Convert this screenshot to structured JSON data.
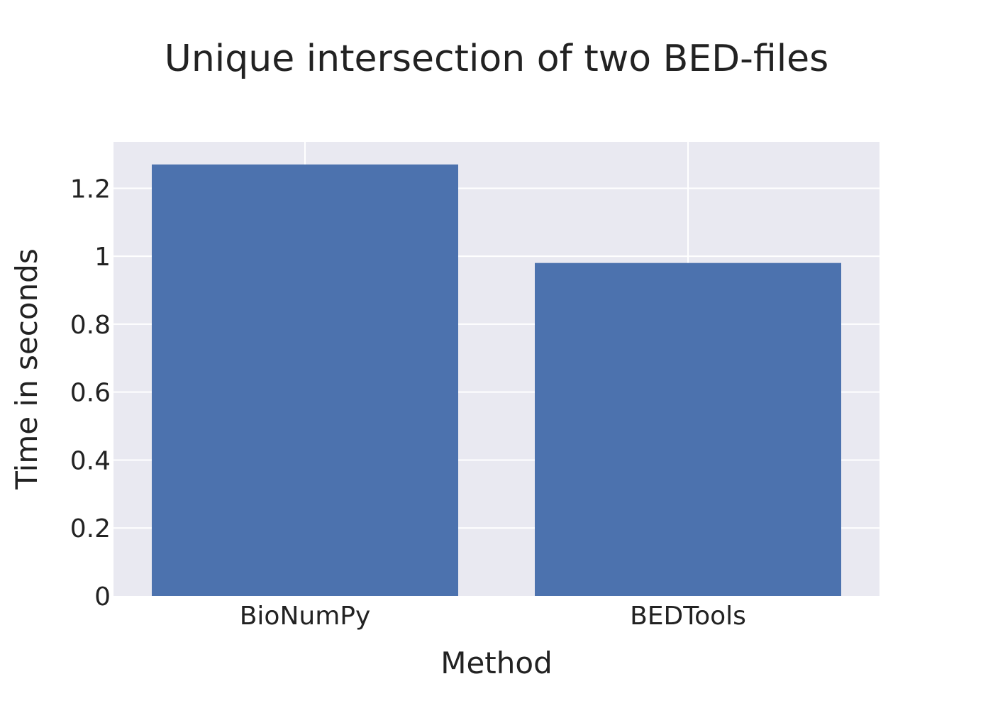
{
  "chart_data": {
    "type": "bar",
    "title": "Unique intersection of two BED-files",
    "xlabel": "Method",
    "ylabel": "Time in seconds",
    "categories": [
      "BioNumPy",
      "BEDTools"
    ],
    "values": [
      1.27,
      0.98
    ],
    "ylim": [
      0,
      1.3364
    ],
    "y_ticks": [
      0,
      0.2,
      0.4,
      0.6,
      0.8,
      1,
      1.2
    ],
    "y_tick_labels": [
      "0",
      "0.2",
      "0.4",
      "0.6",
      "0.8",
      "1",
      "1.2"
    ],
    "grid": true,
    "legend": "none",
    "colors": {
      "bar": "#4c72ae",
      "plot_background": "#e9e9f1",
      "grid": "#ffffff",
      "text": "#222222"
    }
  }
}
